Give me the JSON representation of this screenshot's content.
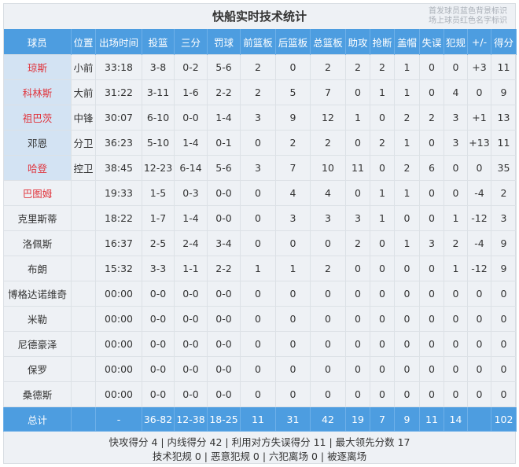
{
  "title": "快船实时技术统计",
  "legend": [
    "首发球员蓝色背景标识",
    "场上球员红色名字标识"
  ],
  "colors": {
    "header_bg": "#4d9de0",
    "starter_bg": "#d3e3f3",
    "on_court_name": "#e0343c"
  },
  "columns": [
    "球员",
    "位置",
    "出场时间",
    "投篮",
    "三分",
    "罚球",
    "前篮板",
    "后篮板",
    "总篮板",
    "助攻",
    "抢断",
    "盖帽",
    "失误",
    "犯规",
    "+/-",
    "得分"
  ],
  "players": [
    {
      "starter": true,
      "on_court": true,
      "cells": [
        "琼斯",
        "小前",
        "33:18",
        "3-8",
        "0-2",
        "5-6",
        "2",
        "0",
        "2",
        "2",
        "2",
        "1",
        "0",
        "0",
        "+3",
        "11"
      ]
    },
    {
      "starter": true,
      "on_court": true,
      "cells": [
        "科林斯",
        "大前",
        "31:22",
        "3-11",
        "1-6",
        "2-2",
        "2",
        "5",
        "7",
        "0",
        "1",
        "1",
        "0",
        "4",
        "0",
        "9"
      ]
    },
    {
      "starter": true,
      "on_court": true,
      "cells": [
        "祖巴茨",
        "中锋",
        "30:07",
        "6-10",
        "0-0",
        "1-4",
        "3",
        "9",
        "12",
        "1",
        "0",
        "2",
        "2",
        "3",
        "+1",
        "13"
      ]
    },
    {
      "starter": true,
      "on_court": false,
      "cells": [
        "邓恩",
        "分卫",
        "36:23",
        "5-10",
        "1-4",
        "0-1",
        "0",
        "2",
        "2",
        "0",
        "2",
        "1",
        "0",
        "3",
        "+13",
        "11"
      ]
    },
    {
      "starter": true,
      "on_court": true,
      "cells": [
        "哈登",
        "控卫",
        "38:45",
        "12-23",
        "6-14",
        "5-6",
        "3",
        "7",
        "10",
        "11",
        "0",
        "2",
        "6",
        "0",
        "0",
        "35"
      ]
    },
    {
      "starter": false,
      "on_court": true,
      "cells": [
        "巴图姆",
        "",
        "19:33",
        "1-5",
        "0-3",
        "0-0",
        "0",
        "4",
        "4",
        "0",
        "1",
        "1",
        "0",
        "0",
        "-4",
        "2"
      ]
    },
    {
      "starter": false,
      "on_court": false,
      "cells": [
        "克里斯蒂",
        "",
        "18:22",
        "1-7",
        "1-4",
        "0-0",
        "0",
        "3",
        "3",
        "3",
        "1",
        "0",
        "0",
        "1",
        "-12",
        "3"
      ]
    },
    {
      "starter": false,
      "on_court": false,
      "cells": [
        "洛佩斯",
        "",
        "16:37",
        "2-5",
        "2-4",
        "3-4",
        "0",
        "0",
        "0",
        "2",
        "0",
        "1",
        "3",
        "2",
        "-4",
        "9"
      ]
    },
    {
      "starter": false,
      "on_court": false,
      "cells": [
        "布朗",
        "",
        "15:32",
        "3-3",
        "1-1",
        "2-2",
        "1",
        "1",
        "2",
        "0",
        "0",
        "0",
        "0",
        "1",
        "-12",
        "9"
      ]
    },
    {
      "starter": false,
      "on_court": false,
      "cells": [
        "博格达诺维奇",
        "",
        "00:00",
        "0-0",
        "0-0",
        "0-0",
        "0",
        "0",
        "0",
        "0",
        "0",
        "0",
        "0",
        "0",
        "0",
        "0"
      ]
    },
    {
      "starter": false,
      "on_court": false,
      "cells": [
        "米勒",
        "",
        "00:00",
        "0-0",
        "0-0",
        "0-0",
        "0",
        "0",
        "0",
        "0",
        "0",
        "0",
        "0",
        "0",
        "0",
        "0"
      ]
    },
    {
      "starter": false,
      "on_court": false,
      "cells": [
        "尼德豪泽",
        "",
        "00:00",
        "0-0",
        "0-0",
        "0-0",
        "0",
        "0",
        "0",
        "0",
        "0",
        "0",
        "0",
        "0",
        "0",
        "0"
      ]
    },
    {
      "starter": false,
      "on_court": false,
      "cells": [
        "保罗",
        "",
        "00:00",
        "0-0",
        "0-0",
        "0-0",
        "0",
        "0",
        "0",
        "0",
        "0",
        "0",
        "0",
        "0",
        "0",
        "0"
      ]
    },
    {
      "starter": false,
      "on_court": false,
      "cells": [
        "桑德斯",
        "",
        "00:00",
        "0-0",
        "0-0",
        "0-0",
        "0",
        "0",
        "0",
        "0",
        "0",
        "0",
        "0",
        "0",
        "0",
        "0"
      ]
    }
  ],
  "totals": [
    "总计",
    "",
    "-",
    "36-82",
    "12-38",
    "18-25",
    "11",
    "31",
    "42",
    "19",
    "7",
    "9",
    "11",
    "14",
    "",
    "102"
  ],
  "footer": {
    "line1": "快攻得分 4 | 内线得分 42 | 利用对方失误得分 11 | 最大领先分数 17",
    "line2": "技术犯规 0 | 恶意犯规 0 | 六犯离场 0 | 被逐离场"
  }
}
